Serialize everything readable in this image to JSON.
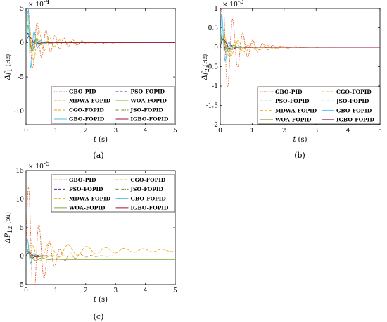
{
  "chart_data": [
    {
      "type": "line",
      "caption": "(a)",
      "ylabel_main": "Δf",
      "ylabel_sub": "1",
      "ylabel_unit": "(Hz)",
      "xlabel_main": "t",
      "xlabel_unit": "(s)",
      "multiplier": "× 10",
      "multiplier_exp": "-4",
      "xlim": [
        0,
        5
      ],
      "ylim": [
        -12,
        5
      ],
      "xticks": [
        "0",
        "1",
        "2",
        "3",
        "4",
        "5"
      ],
      "yticks": [
        "-10",
        "-5",
        "0",
        "5"
      ],
      "ytick_values": [
        -10,
        -5,
        0,
        5
      ],
      "legend": [
        "GBO-PID",
        "PSO-FOPID",
        "MDWA-FOPID",
        "WOA-FOPID",
        "CGO-FOPID",
        "JSO-FOPID",
        "GBO-FOPID",
        "IGBO-FOPID"
      ],
      "series": [
        {
          "name": "GBO-PID",
          "color": "#d95319",
          "dash": "1.2,1.2",
          "amp": 5.2,
          "decay": 1.6,
          "freq": 10.5,
          "offset": 0
        },
        {
          "name": "PSO-FOPID",
          "color": "#4b2f9a",
          "dash": "4,2",
          "amp": 2.0,
          "decay": 6,
          "freq": 12,
          "offset": 0
        },
        {
          "name": "MDWA-FOPID",
          "color": "#edb120",
          "dash": "4,2",
          "amp": 4.6,
          "decay": 2.2,
          "freq": 9,
          "offset": 0
        },
        {
          "name": "WOA-FOPID",
          "color": "#77ac30",
          "dash": "",
          "amp": 3.5,
          "decay": 5,
          "freq": 11,
          "offset": 0
        },
        {
          "name": "CGO-FOPID",
          "color": "#e6a417",
          "dash": "4,2",
          "amp": 3.0,
          "decay": 4,
          "freq": 10,
          "offset": 0
        },
        {
          "name": "JSO-FOPID",
          "color": "#5a8f29",
          "dash": "4,1.5,1,1.5",
          "amp": 2.8,
          "decay": 7,
          "freq": 13,
          "offset": 0
        },
        {
          "name": "GBO-FOPID",
          "color": "#4dbeee",
          "dash": "",
          "amp": 11.5,
          "decay": 7,
          "freq": 14,
          "offset": 0
        },
        {
          "name": "IGBO-FOPID",
          "color": "#a2142f",
          "dash": "",
          "amp": 1.6,
          "decay": 5,
          "freq": 6,
          "offset": 0
        }
      ]
    },
    {
      "type": "line",
      "caption": "(b)",
      "ylabel_main": "Δf",
      "ylabel_sub": "2",
      "ylabel_unit": "(Hz)",
      "xlabel_main": "t",
      "xlabel_unit": "(s)",
      "multiplier": "× 10",
      "multiplier_exp": "-3",
      "xlim": [
        0,
        5
      ],
      "ylim": [
        -2,
        1
      ],
      "xticks": [
        "0",
        "1",
        "2",
        "3",
        "4",
        "5"
      ],
      "yticks": [
        "-2",
        "-1.5",
        "-1",
        "-0.5",
        "0",
        "0.5",
        "1"
      ],
      "ytick_values": [
        -2,
        -1.5,
        -1,
        -0.5,
        0,
        0.5,
        1
      ],
      "legend": [
        "GBO-PID",
        "CGO-FOPID",
        "PSO-FOPID",
        "JSO-FOPID",
        "MDWA-FOPID",
        "GBO-FOPID",
        "WOA-FOPID",
        "IGBO-FOPID"
      ],
      "series": [
        {
          "name": "GBO-PID",
          "color": "#d95319",
          "dash": "1.2,1.2",
          "amp": 1.7,
          "decay": 2.2,
          "freq": 10,
          "offset": 0
        },
        {
          "name": "CGO-FOPID",
          "color": "#e6a417",
          "dash": "4,2",
          "amp": 0.6,
          "decay": 3,
          "freq": 8,
          "offset": 0
        },
        {
          "name": "PSO-FOPID",
          "color": "#4b2f9a",
          "dash": "4,2",
          "amp": 0.4,
          "decay": 6,
          "freq": 11,
          "offset": 0
        },
        {
          "name": "JSO-FOPID",
          "color": "#5a8f29",
          "dash": "4,1.5,1,1.5",
          "amp": 0.5,
          "decay": 7,
          "freq": 12,
          "offset": 0
        },
        {
          "name": "MDWA-FOPID",
          "color": "#edb120",
          "dash": "4,2",
          "amp": 0.35,
          "decay": 1.3,
          "freq": 7,
          "offset": 0
        },
        {
          "name": "GBO-FOPID",
          "color": "#4dbeee",
          "dash": "",
          "amp": 1.3,
          "decay": 8,
          "freq": 14,
          "offset": 0
        },
        {
          "name": "WOA-FOPID",
          "color": "#77ac30",
          "dash": "",
          "amp": 0.4,
          "decay": 5,
          "freq": 9,
          "offset": 0
        },
        {
          "name": "IGBO-FOPID",
          "color": "#a2142f",
          "dash": "",
          "amp": 0.35,
          "decay": 5,
          "freq": 6,
          "offset": 0
        }
      ]
    },
    {
      "type": "line",
      "caption": "(c)",
      "ylabel_main": "ΔP",
      "ylabel_sub": "12",
      "ylabel_unit": "(pu)",
      "xlabel_main": "t",
      "xlabel_unit": "(s)",
      "multiplier": "× 10",
      "multiplier_exp": "-5",
      "xlim": [
        0,
        5
      ],
      "ylim": [
        -5,
        15
      ],
      "xticks": [
        "0",
        "1",
        "2",
        "3",
        "4",
        "5"
      ],
      "yticks": [
        "-5",
        "0",
        "5",
        "10",
        "15"
      ],
      "ytick_values": [
        -5,
        0,
        5,
        10,
        15
      ],
      "legend": [
        "GBO-PID",
        "CGO-FOPID",
        "PSO-FOPID",
        "JSO-FOPID",
        "MDWA-FOPID",
        "GBO-FOPID",
        "WOA-FOPID",
        "IGBO-FOPID"
      ],
      "series": [
        {
          "name": "GBO-PID",
          "color": "#d95319",
          "dash": "1.2,1.2",
          "amp": 14.5,
          "decay": 2.2,
          "freq": 9,
          "offset": 0
        },
        {
          "name": "CGO-FOPID",
          "color": "#e6a417",
          "dash": "4,2",
          "amp": 1.5,
          "decay": 3,
          "freq": 8,
          "offset": 0
        },
        {
          "name": "PSO-FOPID",
          "color": "#4b2f9a",
          "dash": "4,2",
          "amp": 1.2,
          "decay": 6,
          "freq": 10,
          "offset": 0
        },
        {
          "name": "JSO-FOPID",
          "color": "#5a8f29",
          "dash": "4,1.5,1,1.5",
          "amp": 1.4,
          "decay": 7,
          "freq": 12,
          "offset": 0
        },
        {
          "name": "MDWA-FOPID",
          "color": "#edb120",
          "dash": "4,2",
          "amp": 2.0,
          "decay": 0.5,
          "freq": 5,
          "offset": 1.0
        },
        {
          "name": "GBO-FOPID",
          "color": "#4dbeee",
          "dash": "",
          "amp": 4.5,
          "decay": 8,
          "freq": 14,
          "offset": 0
        },
        {
          "name": "WOA-FOPID",
          "color": "#77ac30",
          "dash": "",
          "amp": 1.5,
          "decay": 4,
          "freq": 7,
          "offset": -0.6
        },
        {
          "name": "IGBO-FOPID",
          "color": "#a2142f",
          "dash": "",
          "amp": 1.0,
          "decay": 5,
          "freq": 6,
          "offset": 0
        }
      ]
    }
  ]
}
